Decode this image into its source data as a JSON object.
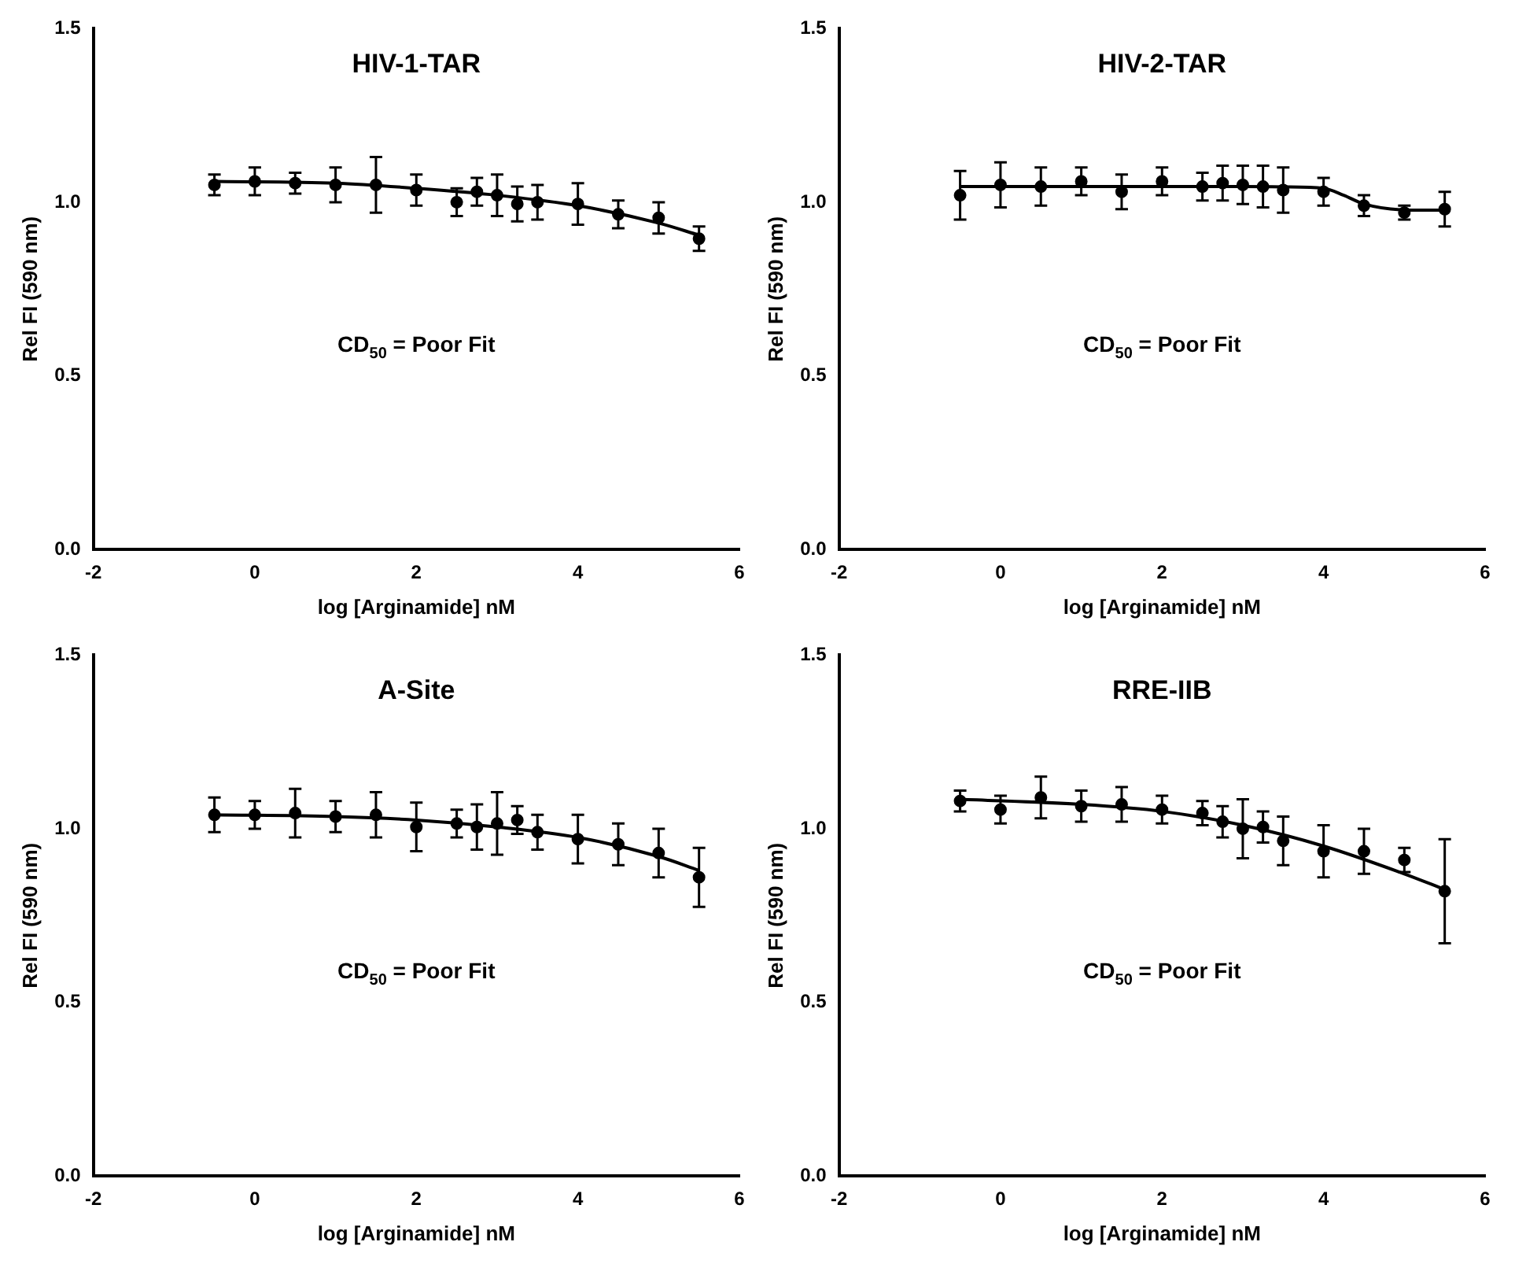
{
  "chart_data": [
    {
      "type": "scatter",
      "title": "HIV-1-TAR",
      "xlabel": "log [Arginamide] nM",
      "ylabel": "Rel FI (590 nm)",
      "xlim": [
        -2,
        6
      ],
      "xticks": [
        -2,
        0,
        2,
        4,
        6
      ],
      "ylim": [
        0,
        1.5
      ],
      "yticks": [
        {
          "value": 0,
          "label": "0.0"
        },
        {
          "value": 0.5,
          "label": "0.5"
        },
        {
          "value": 1,
          "label": "1.0"
        },
        {
          "value": 1.5,
          "label": "1.5"
        }
      ],
      "grid": false,
      "legend": false,
      "annotations": [
        "CD$_{50}$ = Poor Fit"
      ],
      "series": [
        {
          "type": "scatter",
          "marker": "circle",
          "color": "#000000",
          "x": [
            -0.5,
            0,
            0.5,
            1,
            1.5,
            2,
            2.5,
            2.75,
            3,
            3.25,
            3.5,
            4,
            4.5,
            5,
            5.5
          ],
          "values": [
            1.05,
            1.06,
            1.055,
            1.05,
            1.05,
            1.035,
            1.0,
            1.03,
            1.02,
            0.995,
            1.0,
            0.995,
            0.965,
            0.955,
            0.895
          ],
          "errors": [
            0.03,
            0.04,
            0.03,
            0.05,
            0.08,
            0.045,
            0.04,
            0.04,
            0.06,
            0.05,
            0.05,
            0.06,
            0.04,
            0.045,
            0.035
          ]
        },
        {
          "type": "line",
          "marker": "none",
          "color": "#000000",
          "x": [
            -0.5,
            1,
            2,
            3,
            4,
            5,
            5.5
          ],
          "values": [
            1.06,
            1.055,
            1.04,
            1.02,
            0.99,
            0.94,
            0.905
          ]
        }
      ]
    },
    {
      "type": "scatter",
      "title": "HIV-2-TAR",
      "xlabel": "log [Arginamide] nM",
      "ylabel": "Rel FI (590 nm)",
      "xlim": [
        -2,
        6
      ],
      "xticks": [
        -2,
        0,
        2,
        4,
        6
      ],
      "ylim": [
        0,
        1.5
      ],
      "yticks": [
        {
          "value": 0,
          "label": "0.0"
        },
        {
          "value": 0.5,
          "label": "0.5"
        },
        {
          "value": 1,
          "label": "1.0"
        },
        {
          "value": 1.5,
          "label": "1.5"
        }
      ],
      "grid": false,
      "legend": false,
      "annotations": [
        "CD$_{50}$ = Poor Fit"
      ],
      "series": [
        {
          "type": "scatter",
          "marker": "circle",
          "color": "#000000",
          "x": [
            -0.5,
            0,
            0.5,
            1,
            1.5,
            2,
            2.5,
            2.75,
            3,
            3.25,
            3.5,
            4,
            4.5,
            5,
            5.5
          ],
          "values": [
            1.02,
            1.05,
            1.045,
            1.06,
            1.03,
            1.06,
            1.045,
            1.055,
            1.05,
            1.045,
            1.035,
            1.03,
            0.99,
            0.97,
            0.98
          ],
          "errors": [
            0.07,
            0.065,
            0.055,
            0.04,
            0.05,
            0.04,
            0.04,
            0.05,
            0.055,
            0.06,
            0.065,
            0.04,
            0.03,
            0.02,
            0.05
          ]
        },
        {
          "type": "line",
          "marker": "none",
          "color": "#000000",
          "x": [
            -0.5,
            1,
            2,
            3,
            3.5,
            4,
            4.25,
            4.5,
            5,
            5.5
          ],
          "values": [
            1.045,
            1.045,
            1.045,
            1.045,
            1.044,
            1.04,
            1.02,
            0.995,
            0.978,
            0.977
          ]
        }
      ]
    },
    {
      "type": "scatter",
      "title": "A-Site",
      "xlabel": "log [Arginamide] nM",
      "ylabel": "Rel FI (590 nm)",
      "xlim": [
        -2,
        6
      ],
      "xticks": [
        -2,
        0,
        2,
        4,
        6
      ],
      "ylim": [
        0,
        1.5
      ],
      "yticks": [
        {
          "value": 0,
          "label": "0.0"
        },
        {
          "value": 0.5,
          "label": "0.5"
        },
        {
          "value": 1,
          "label": "1.0"
        },
        {
          "value": 1.5,
          "label": "1.5"
        }
      ],
      "grid": false,
      "legend": false,
      "annotations": [
        "CD$_{50}$ = Poor Fit"
      ],
      "series": [
        {
          "type": "scatter",
          "marker": "circle",
          "color": "#000000",
          "x": [
            -0.5,
            0,
            0.5,
            1,
            1.5,
            2,
            2.5,
            2.75,
            3,
            3.25,
            3.5,
            4,
            4.5,
            5,
            5.5
          ],
          "values": [
            1.04,
            1.04,
            1.045,
            1.035,
            1.04,
            1.005,
            1.015,
            1.005,
            1.015,
            1.025,
            0.99,
            0.97,
            0.955,
            0.93,
            0.86
          ],
          "errors": [
            0.05,
            0.04,
            0.07,
            0.045,
            0.065,
            0.07,
            0.04,
            0.065,
            0.09,
            0.04,
            0.05,
            0.07,
            0.06,
            0.07,
            0.085
          ]
        },
        {
          "type": "line",
          "marker": "none",
          "color": "#000000",
          "x": [
            -0.5,
            1,
            2,
            3,
            4,
            5,
            5.5
          ],
          "values": [
            1.04,
            1.035,
            1.025,
            1.005,
            0.975,
            0.92,
            0.88
          ]
        }
      ]
    },
    {
      "type": "scatter",
      "title": "RRE-IIB",
      "xlabel": "log [Arginamide] nM",
      "ylabel": "Rel FI (590 nm)",
      "xlim": [
        -2,
        6
      ],
      "xticks": [
        -2,
        0,
        2,
        4,
        6
      ],
      "ylim": [
        0,
        1.5
      ],
      "yticks": [
        {
          "value": 0,
          "label": "0.0"
        },
        {
          "value": 0.5,
          "label": "0.5"
        },
        {
          "value": 1,
          "label": "1.0"
        },
        {
          "value": 1.5,
          "label": "1.5"
        }
      ],
      "grid": false,
      "legend": false,
      "annotations": [
        "CD$_{50}$ = Poor Fit"
      ],
      "series": [
        {
          "type": "scatter",
          "marker": "circle",
          "color": "#000000",
          "x": [
            -0.5,
            0,
            0.5,
            1,
            1.5,
            2,
            2.5,
            2.75,
            3,
            3.25,
            3.5,
            4,
            4.5,
            5,
            5.5
          ],
          "values": [
            1.08,
            1.055,
            1.09,
            1.065,
            1.07,
            1.055,
            1.045,
            1.02,
            1.0,
            1.005,
            0.965,
            0.935,
            0.935,
            0.91,
            0.82
          ],
          "errors": [
            0.03,
            0.04,
            0.06,
            0.045,
            0.05,
            0.04,
            0.035,
            0.045,
            0.085,
            0.045,
            0.07,
            0.075,
            0.065,
            0.035,
            0.15
          ]
        },
        {
          "type": "line",
          "marker": "none",
          "color": "#000000",
          "x": [
            -0.5,
            1,
            2,
            3,
            4,
            5,
            5.5
          ],
          "values": [
            1.085,
            1.07,
            1.05,
            1.01,
            0.95,
            0.87,
            0.825
          ]
        }
      ]
    }
  ]
}
